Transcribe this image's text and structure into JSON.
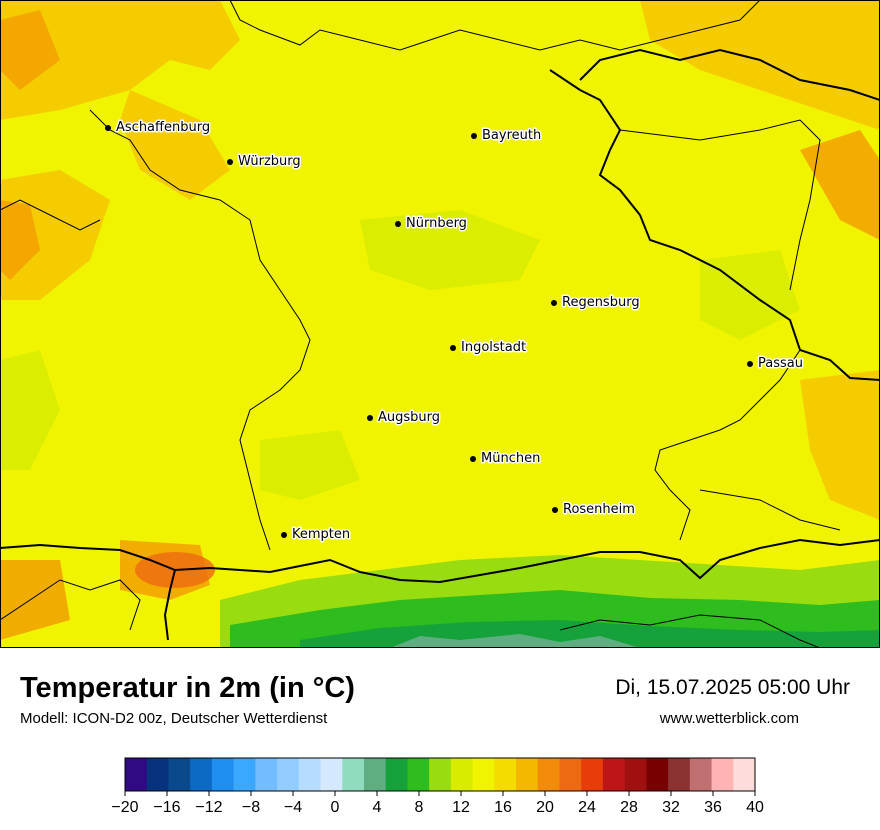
{
  "title": "Temperatur in 2m (in °C)",
  "subtitle": "Modell: ICON-D2 00z, Deutscher Wetterdienst",
  "datetime": "Di, 15.07.2025 05:00 Uhr",
  "website": "www.wetterblick.com",
  "cities": [
    {
      "name": "Aschaffenburg"
    },
    {
      "name": "Würzburg"
    },
    {
      "name": "Bayreuth"
    },
    {
      "name": "Nürnberg"
    },
    {
      "name": "Regensburg"
    },
    {
      "name": "Ingolstadt"
    },
    {
      "name": "Passau"
    },
    {
      "name": "Augsburg"
    },
    {
      "name": "München"
    },
    {
      "name": "Rosenheim"
    },
    {
      "name": "Kempten"
    }
  ],
  "legend": {
    "colors": [
      "#2f0a82",
      "#07337e",
      "#0a4a8c",
      "#0c6ac4",
      "#1e8ff0",
      "#3aa8ff",
      "#72bcff",
      "#93ccff",
      "#b6dcff",
      "#d4e9ff",
      "#8fdcbe",
      "#5fae82",
      "#16a23a",
      "#2ebc1e",
      "#99dc10",
      "#d8ec00",
      "#f0f400",
      "#f4dc00",
      "#f5b800",
      "#f28a0a",
      "#ee6a12",
      "#e83c0a",
      "#be1616",
      "#a01010",
      "#780000",
      "#8b3232",
      "#c07070",
      "#ffb4b4",
      "#ffdcdc"
    ],
    "tick_labels": [
      "−20",
      "−16",
      "−12",
      "−8",
      "−4",
      "0",
      "4",
      "8",
      "12",
      "16",
      "20",
      "24",
      "28",
      "32",
      "36",
      "40"
    ]
  }
}
